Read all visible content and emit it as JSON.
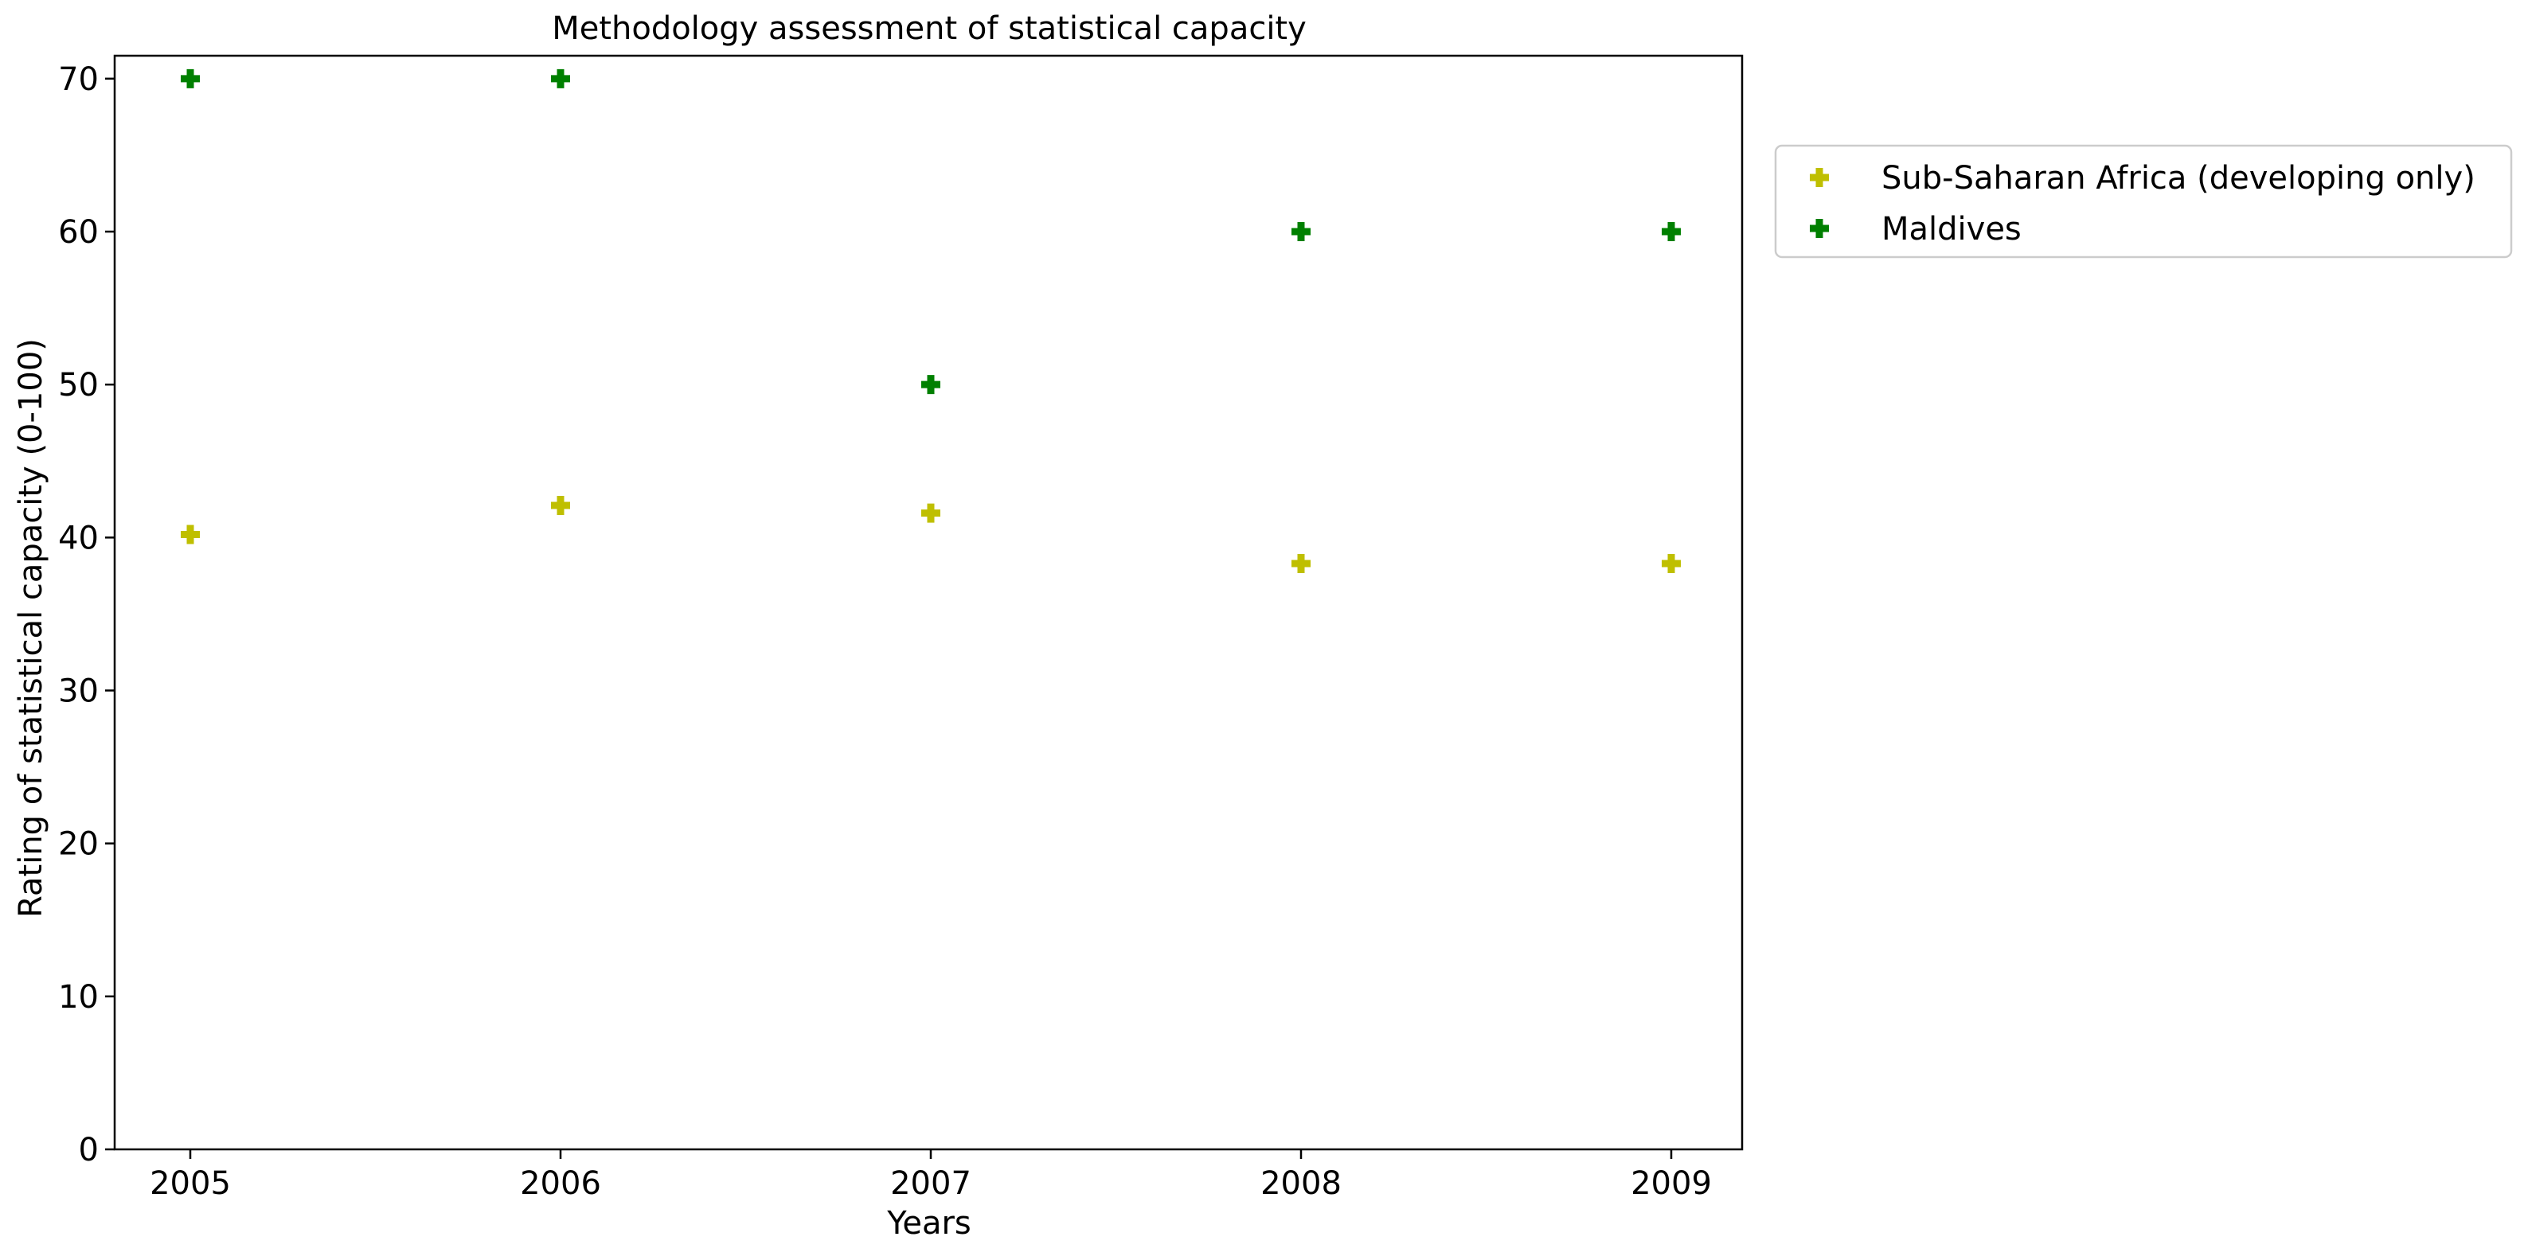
{
  "chart_data": {
    "type": "scatter",
    "title": "Methodology assessment of statistical capacity",
    "xlabel": "Years",
    "ylabel": "Rating of statistical capacity (0-100)",
    "x": [
      "2005",
      "2006",
      "2007",
      "2008",
      "2009"
    ],
    "ylim": [
      0,
      71.5
    ],
    "yticks": [
      0,
      10,
      20,
      30,
      40,
      50,
      60,
      70
    ],
    "grid": false,
    "legend_position": "outside-right-top",
    "marker": "plus",
    "series": [
      {
        "name": "Sub-Saharan Africa (developing only)",
        "color": "#bfbf00",
        "values": [
          40.2,
          42.1,
          41.6,
          38.3,
          38.3
        ]
      },
      {
        "name": "Maldives",
        "color": "#008000",
        "values": [
          70,
          70,
          50,
          60,
          60
        ]
      }
    ]
  }
}
